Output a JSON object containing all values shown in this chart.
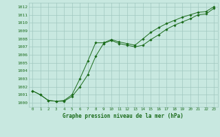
{
  "title": "Graphe pression niveau de la mer (hPa)",
  "background_color": "#c8e8e0",
  "grid_color": "#a0c8c0",
  "line_color": "#1a6b1a",
  "marker_color": "#1a6b1a",
  "xlim": [
    -0.5,
    23.5
  ],
  "ylim": [
    999.5,
    1012.5
  ],
  "xticks": [
    0,
    1,
    2,
    3,
    4,
    5,
    6,
    7,
    8,
    9,
    10,
    11,
    12,
    13,
    14,
    15,
    16,
    17,
    18,
    19,
    20,
    21,
    22,
    23
  ],
  "yticks": [
    1000,
    1001,
    1002,
    1003,
    1004,
    1005,
    1006,
    1007,
    1008,
    1009,
    1010,
    1011,
    1012
  ],
  "line1_x": [
    0,
    1,
    2,
    3,
    4,
    5,
    6,
    7,
    8,
    9,
    10,
    11,
    12,
    13,
    14,
    15,
    16,
    17,
    18,
    19,
    20,
    21,
    22,
    23
  ],
  "line1_y": [
    1001.5,
    1001.0,
    1000.3,
    1000.2,
    1000.2,
    1000.8,
    1002.0,
    1003.5,
    1005.8,
    1007.4,
    1007.8,
    1007.4,
    1007.2,
    1007.0,
    1007.2,
    1007.9,
    1008.5,
    1009.2,
    1009.7,
    1010.1,
    1010.5,
    1011.0,
    1011.1,
    1011.8
  ],
  "line2_x": [
    0,
    1,
    2,
    3,
    4,
    5,
    6,
    7,
    8,
    9,
    10,
    11,
    12,
    13,
    14,
    15,
    16,
    17,
    18,
    19,
    20,
    21,
    22,
    23
  ],
  "line2_y": [
    1001.5,
    1001.0,
    1000.3,
    1000.2,
    1000.3,
    1001.0,
    1003.0,
    1005.2,
    1007.5,
    1007.5,
    1007.9,
    1007.6,
    1007.4,
    1007.2,
    1008.0,
    1008.8,
    1009.4,
    1009.9,
    1010.3,
    1010.7,
    1011.0,
    1011.3,
    1011.4,
    1012.0
  ]
}
